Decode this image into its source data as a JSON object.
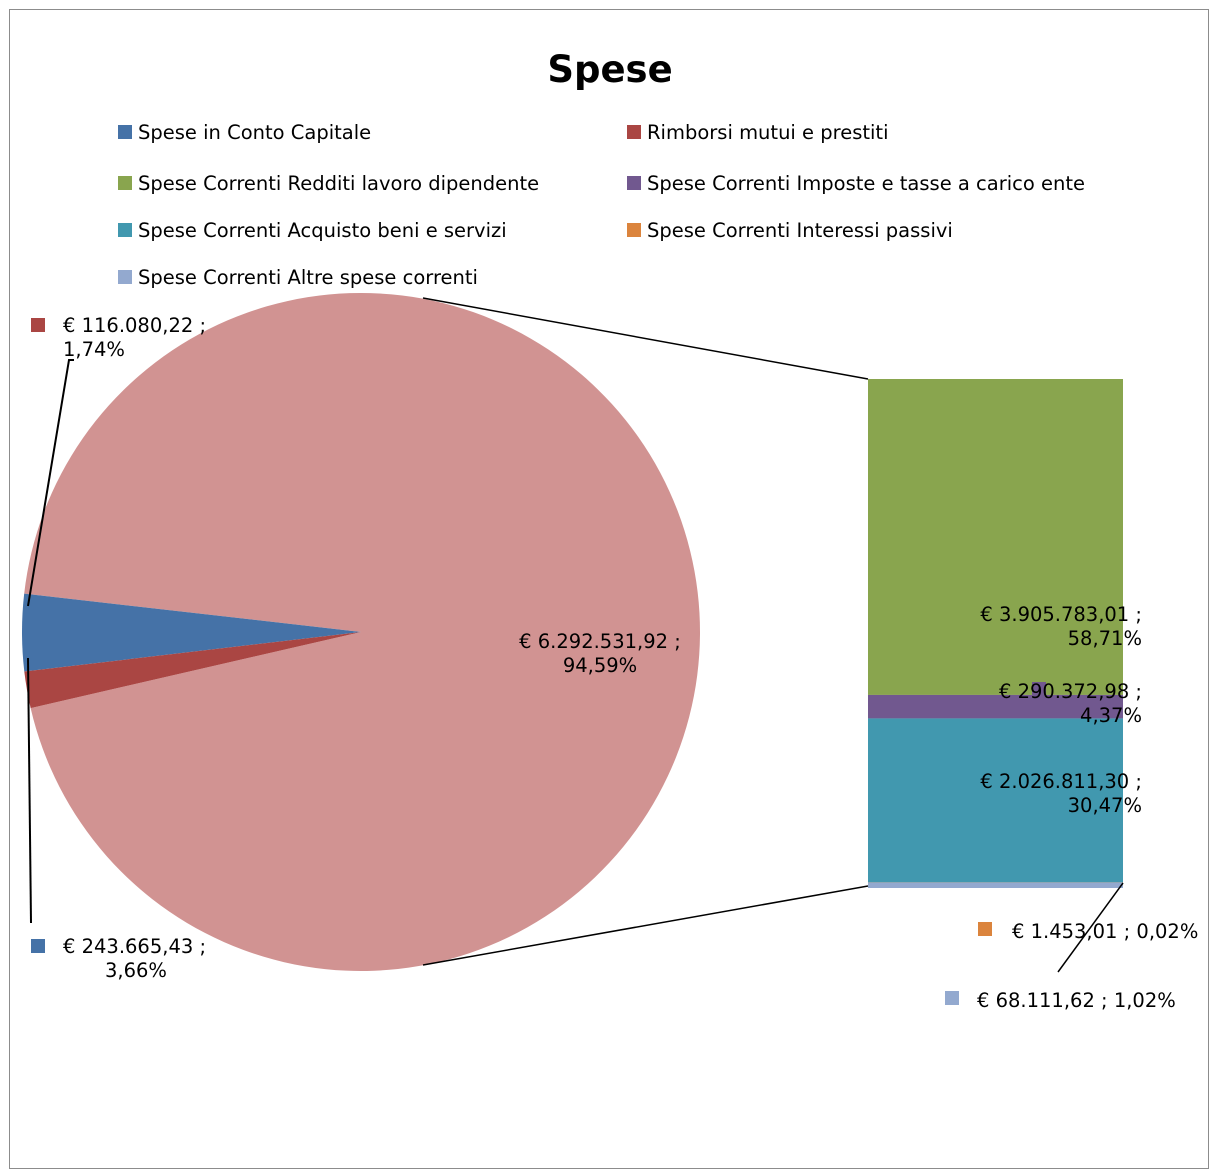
{
  "chart_data": {
    "type": "pie",
    "subtype": "bar-of-pie",
    "title": "Spese",
    "legend_position": "top",
    "series": [
      {
        "name": "Spese in Conto Capitale",
        "value": 243665.43,
        "label": "€ 243.665,43 ; 3,66%",
        "color": "#4572a7",
        "group": "pie"
      },
      {
        "name": "Rimborsi mutui e prestiti",
        "value": 116080.22,
        "label": "€ 116.080,22 ; 1,74%",
        "color": "#aa4643",
        "group": "pie"
      },
      {
        "name": "Spese Correnti Redditi lavoro dipendente",
        "value": 3905783.01,
        "label": "€ 3.905.783,01 ; 58,71%",
        "color": "#89a54e",
        "group": "bar"
      },
      {
        "name": "Spese Correnti Imposte e tasse a carico ente",
        "value": 290372.98,
        "label": "€ 290.372,98 ; 4,37%",
        "color": "#71588f",
        "group": "bar"
      },
      {
        "name": "Spese Correnti Acquisto beni e servizi",
        "value": 2026811.3,
        "label": "€ 2.026.811,30 ; 30,47%",
        "color": "#4198af",
        "group": "bar"
      },
      {
        "name": "Spese Correnti Interessi passivi",
        "value": 1453.01,
        "label": "€ 1.453,01 ; 0,02%",
        "color": "#db843d",
        "group": "bar"
      },
      {
        "name": "Spese Correnti Altre spese correnti",
        "value": 68111.62,
        "label": "€ 68.111,62 ; 1,02%",
        "color": "#93a9cf",
        "group": "bar"
      }
    ],
    "other_slice": {
      "value": 6292531.92,
      "label": "€ 6.292.531,92 ; 94,59%",
      "color": "#d19392"
    }
  }
}
